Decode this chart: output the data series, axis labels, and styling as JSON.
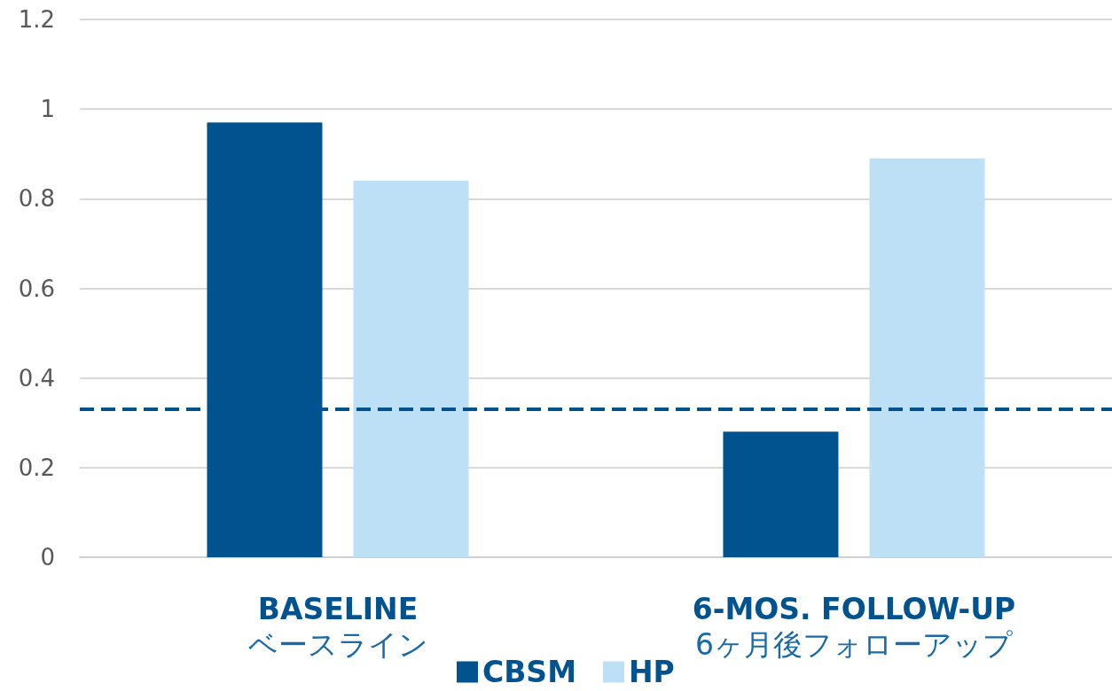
{
  "chart_data": {
    "type": "bar",
    "categories": [
      "BASELINE\nベースライン",
      "6-MOS. FOLLOW-UP\n6ヶ月後フォローアップ"
    ],
    "series": [
      {
        "name": "CBSM",
        "color": "#00538f",
        "values": [
          0.97,
          0.28
        ]
      },
      {
        "name": "HP",
        "color": "#bde0f7",
        "values": [
          0.84,
          0.89
        ]
      }
    ],
    "ylim": [
      0,
      1.2
    ],
    "yticks": [
      0,
      0.2,
      0.4,
      0.6,
      0.8,
      1,
      1.2
    ],
    "grid": "y",
    "legend": "bottom",
    "ref_lines": [
      {
        "axis": "y",
        "value": 0.33,
        "color": "#00538f",
        "line_style": "dashed"
      }
    ]
  }
}
